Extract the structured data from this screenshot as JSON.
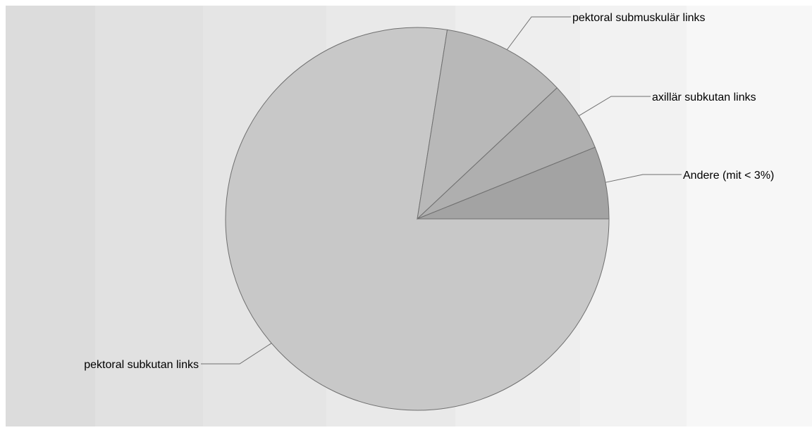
{
  "chart_data": {
    "type": "pie",
    "title": "",
    "slices": [
      {
        "label": "pektoral subkutan links",
        "value": 77.5,
        "color": "#c8c8c8"
      },
      {
        "label": "pektoral submuskulär links",
        "value": 10.5,
        "color": "#b8b8b8"
      },
      {
        "label": "axillär subkutan links",
        "value": 5.9,
        "color": "#afafaf"
      },
      {
        "label": "Andere (mit < 3%)",
        "value": 6.1,
        "color": "#a3a3a3"
      }
    ],
    "legend": "none"
  }
}
